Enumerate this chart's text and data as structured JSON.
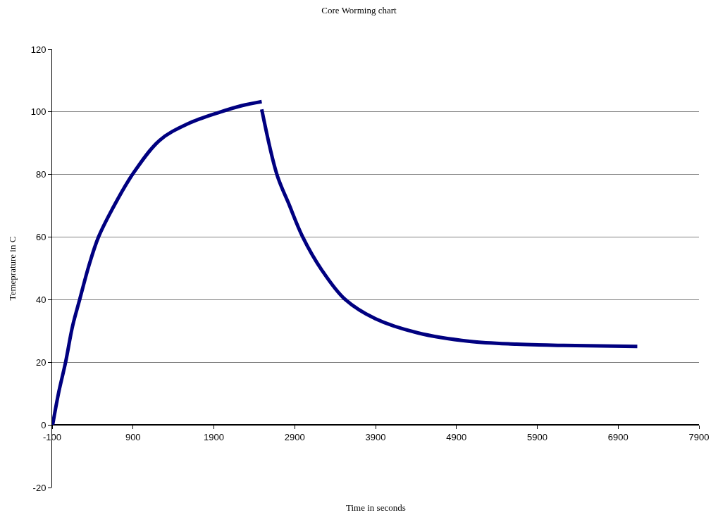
{
  "chart_data": {
    "type": "line",
    "title": "Core Worming chart",
    "xlabel": "Time in seconds",
    "ylabel": "Temeprature in C",
    "series": [
      {
        "color": "#000080",
        "x": [
          -94,
          -22,
          66,
          153,
          240,
          357,
          473,
          647,
          893,
          1228,
          1577,
          1983,
          2244,
          2492
        ],
        "values": [
          0,
          10,
          20,
          31.6,
          40,
          51.1,
          60,
          69.1,
          80,
          90.9,
          96.2,
          100,
          102,
          103.3
        ]
      },
      {
        "color": "#000080",
        "x": [
          2492,
          2680,
          2826,
          3000,
          3232,
          3523,
          3900,
          4423,
          5063,
          5643,
          6224,
          7137
        ],
        "values": [
          100.8,
          80,
          70.7,
          60,
          49.6,
          40.1,
          33.9,
          29.4,
          26.7,
          25.8,
          25.4,
          25.1
        ]
      }
    ],
    "xlim": [
      -100,
      7900
    ],
    "xticks": [
      -100,
      900,
      1900,
      2900,
      3900,
      4900,
      5900,
      6900,
      7900
    ],
    "ylim": [
      -20,
      120
    ],
    "yticks": [
      -20,
      0,
      20,
      40,
      60,
      80,
      100,
      120
    ],
    "grid": "y",
    "marker": "none",
    "line_style": "solid"
  }
}
